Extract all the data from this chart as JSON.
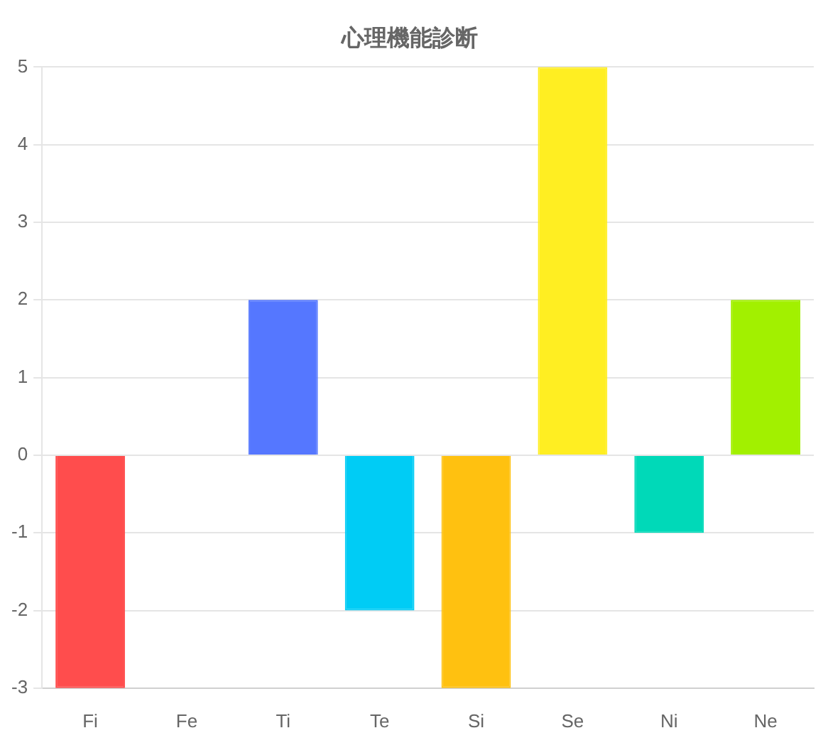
{
  "chart_data": {
    "type": "bar",
    "title": "心理機能診断",
    "categories": [
      "Fi",
      "Fe",
      "Ti",
      "Te",
      "Si",
      "Se",
      "Ni",
      "Ne"
    ],
    "values": [
      -3,
      0,
      2,
      -2,
      -3,
      5,
      -1,
      2
    ],
    "colors": [
      "#ff4d4d",
      "#ff9933",
      "#5577ff",
      "#00ccf5",
      "#ffc110",
      "#ffee22",
      "#00d9b8",
      "#a2f000"
    ],
    "ylim": [
      -3,
      5
    ],
    "yticks": [
      -3,
      -2,
      -1,
      0,
      1,
      2,
      3,
      4,
      5
    ],
    "grid": "y",
    "legend": false
  }
}
